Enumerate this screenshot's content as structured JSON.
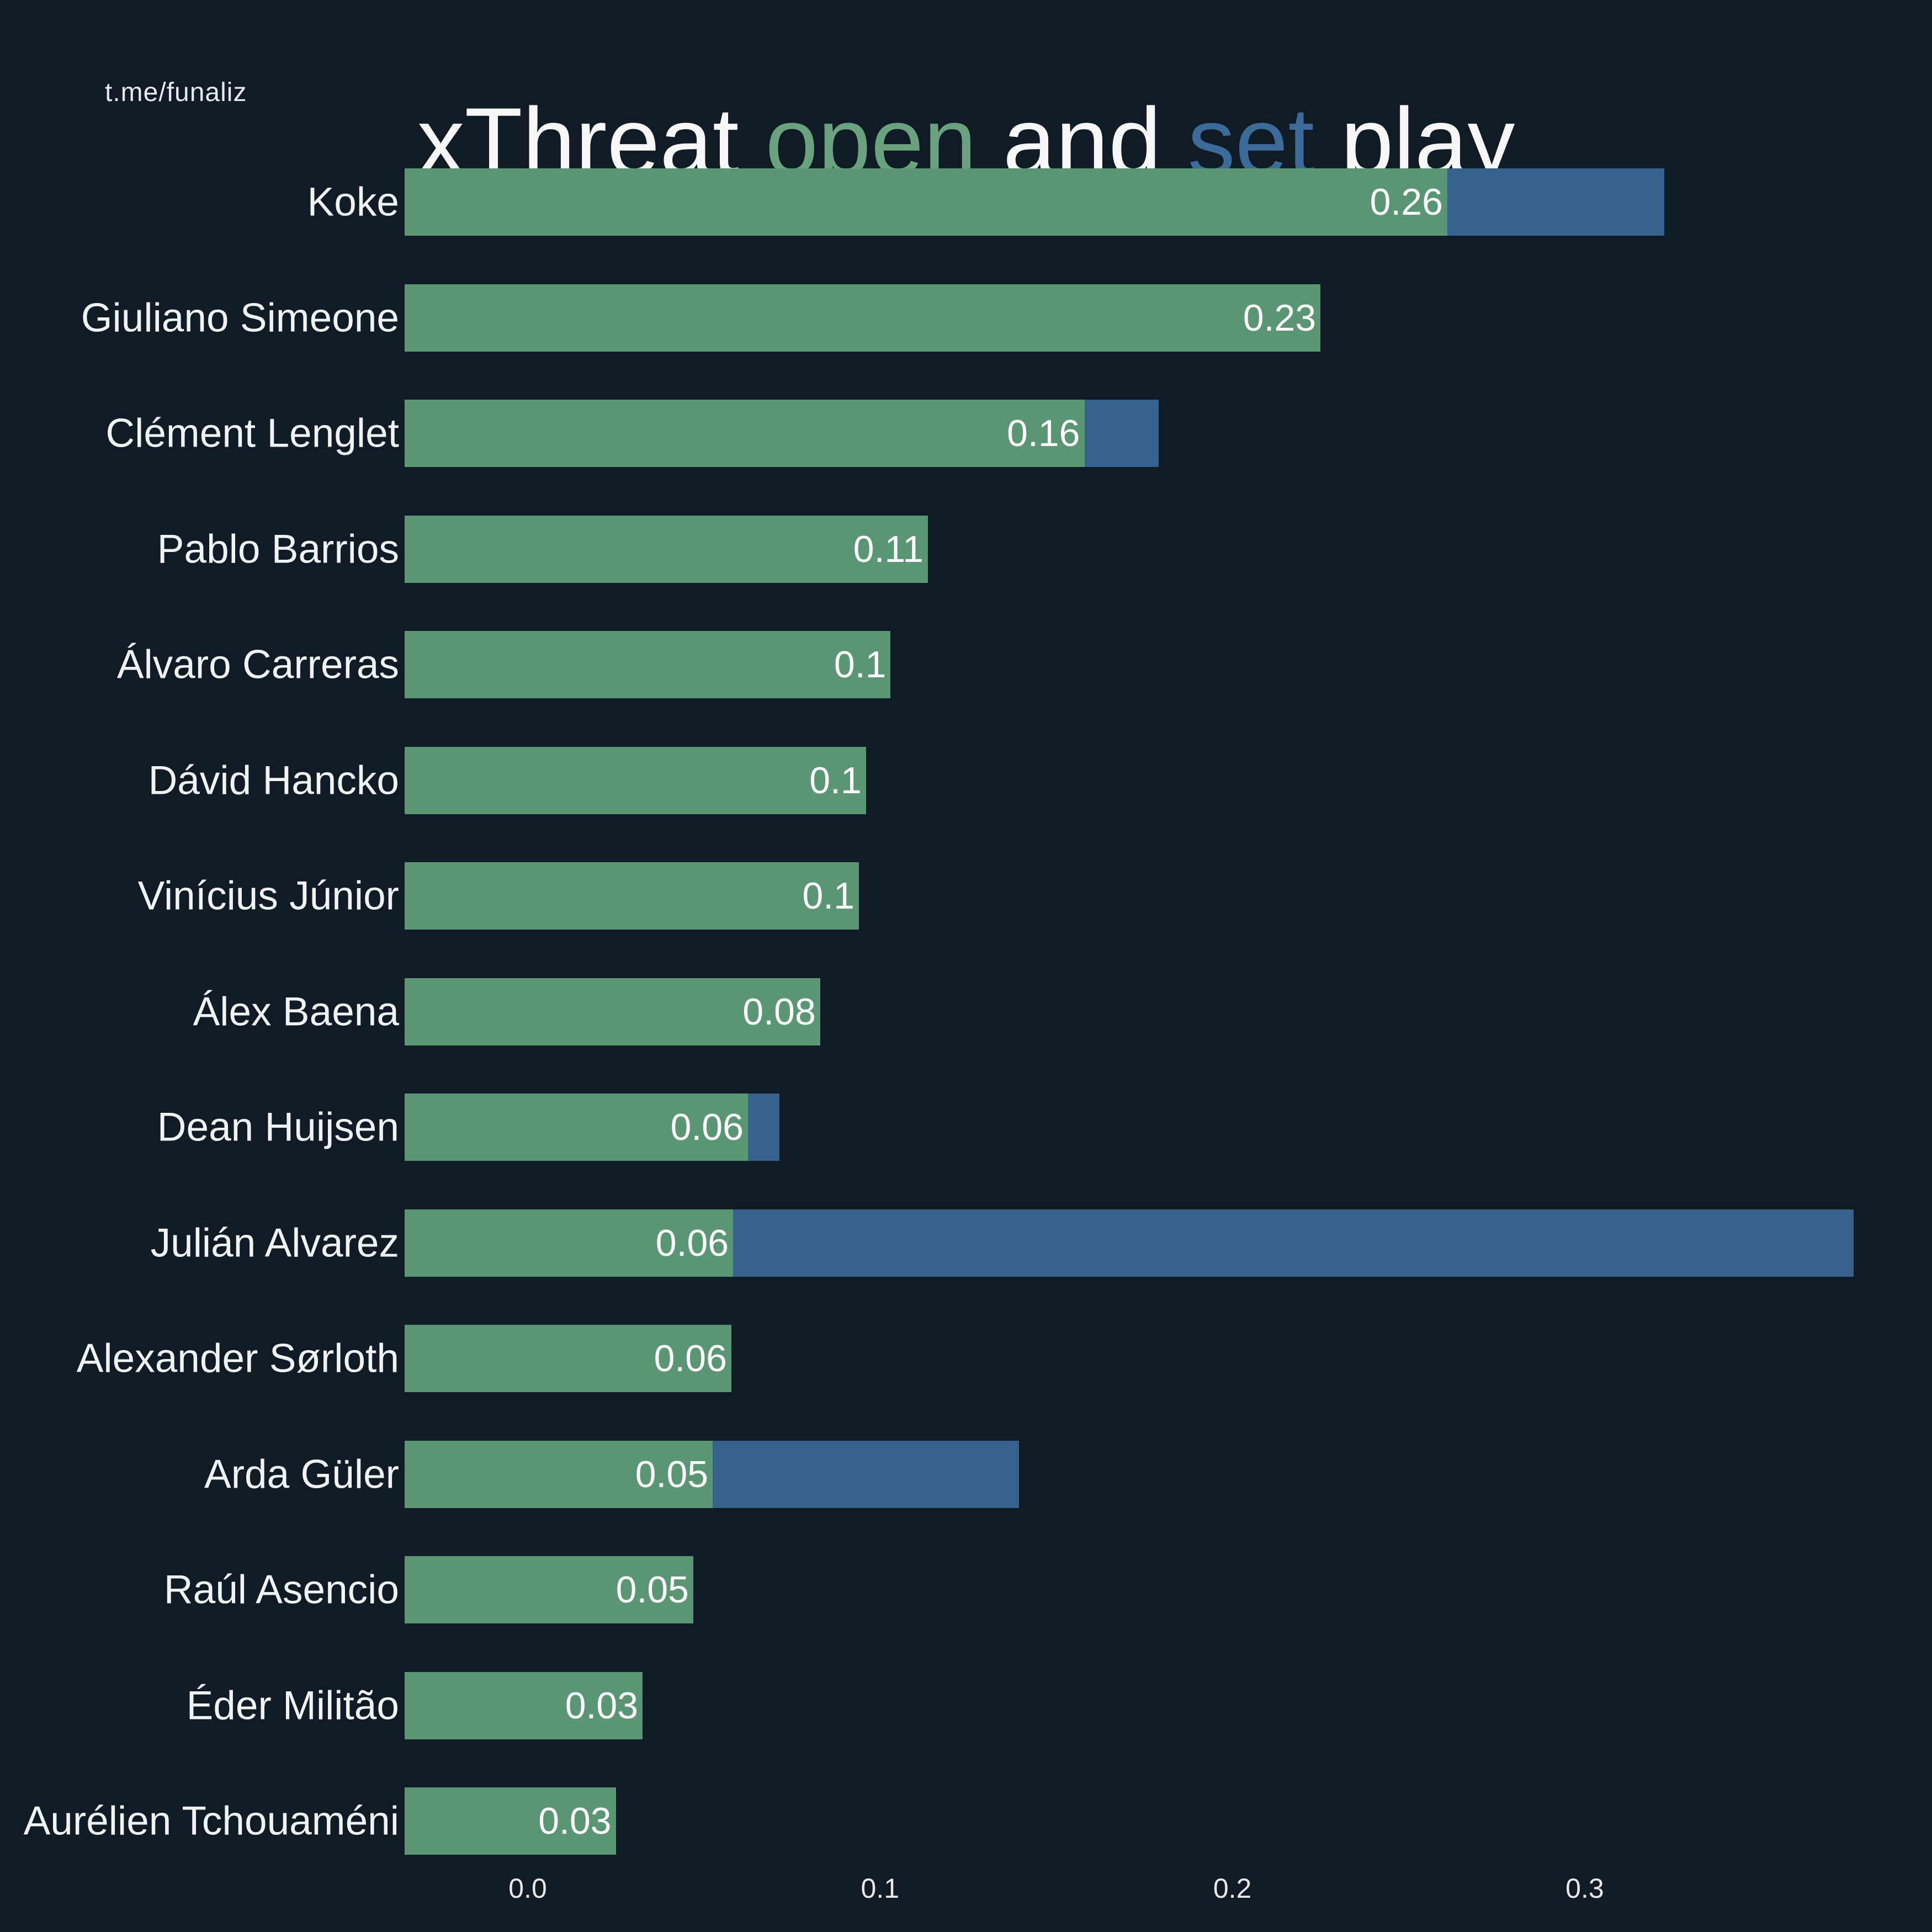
{
  "watermark": "t.me/funaliz",
  "title": {
    "parts": [
      "xThreat ",
      "open",
      " and ",
      "set",
      " play"
    ]
  },
  "colors": {
    "background": "#101b25",
    "open_play": "#5a9674",
    "set_play": "#35618c",
    "title_open_word": "#6aa17e",
    "title_set_word": "#3d6b99",
    "text": "#f0f3f4"
  },
  "chart_data": {
    "type": "bar",
    "orientation": "horizontal",
    "stacked": true,
    "title": "xThreat open and set play",
    "xlabel": "",
    "ylabel": "",
    "grid": false,
    "legend": "encoded in title word colors (open = green, set = blue)",
    "xlim": [
      -0.035,
      0.398
    ],
    "x_ticks": [
      "0.0",
      "0.1",
      "0.2",
      "0.3"
    ],
    "x_tick_values": [
      0.0,
      0.1,
      0.2,
      0.3
    ],
    "series": [
      {
        "name": "open play",
        "color_key": "open_play"
      },
      {
        "name": "set play",
        "color_key": "set_play"
      }
    ],
    "players": [
      {
        "name": "Koke",
        "open": 0.261,
        "set": 0.0615,
        "open_label": "0.26"
      },
      {
        "name": "Giuliano Simeone",
        "open": 0.225,
        "set": 0,
        "open_label": "0.23"
      },
      {
        "name": "Clément Lenglet",
        "open": 0.158,
        "set": 0.021,
        "open_label": "0.16"
      },
      {
        "name": "Pablo Barrios",
        "open": 0.1136,
        "set": 0,
        "open_label": "0.11"
      },
      {
        "name": "Álvaro Carreras",
        "open": 0.103,
        "set": 0,
        "open_label": "0.1"
      },
      {
        "name": "Dávid Hancko",
        "open": 0.096,
        "set": 0,
        "open_label": "0.1"
      },
      {
        "name": "Vinícius Júnior",
        "open": 0.094,
        "set": 0,
        "open_label": "0.1"
      },
      {
        "name": "Álex Baena",
        "open": 0.083,
        "set": 0,
        "open_label": "0.08"
      },
      {
        "name": "Dean Huijsen",
        "open": 0.0625,
        "set": 0.009,
        "open_label": "0.06"
      },
      {
        "name": "Julián Alvarez",
        "open": 0.0583,
        "set": 0.318,
        "open_label": "0.06"
      },
      {
        "name": "Alexander Sørloth",
        "open": 0.0578,
        "set": 0,
        "open_label": "0.06"
      },
      {
        "name": "Arda Güler",
        "open": 0.0525,
        "set": 0.087,
        "open_label": "0.05"
      },
      {
        "name": "Raúl Asencio",
        "open": 0.047,
        "set": 0,
        "open_label": "0.05"
      },
      {
        "name": "Éder Militão",
        "open": 0.0326,
        "set": 0,
        "open_label": "0.03"
      },
      {
        "name": "Aurélien Tchouaméni",
        "open": 0.025,
        "set": 0,
        "open_label": "0.03"
      }
    ]
  }
}
